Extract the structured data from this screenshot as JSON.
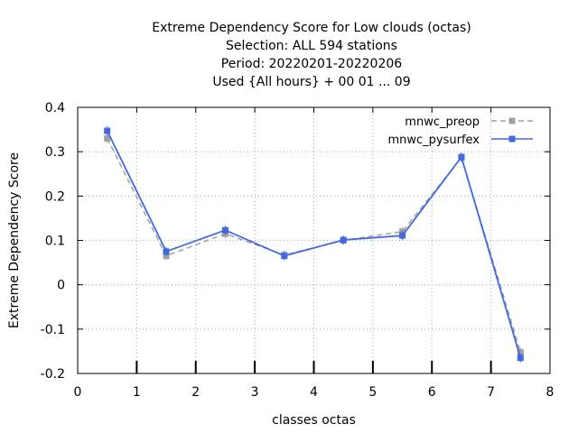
{
  "chart_data": {
    "type": "line",
    "title_lines": [
      "Extreme Dependency Score  for Low clouds (octas)",
      "Selection: ALL    594 stations",
      "Period: 20220201-20220206",
      "Used {All hours} + 00 01 ... 09"
    ],
    "xlabel": "classes octas",
    "ylabel": "Extreme Dependency Score",
    "xlim": [
      0,
      8
    ],
    "ylim": [
      -0.2,
      0.4
    ],
    "x_ticks": [
      "0",
      "1",
      "2",
      "3",
      "4",
      "5",
      "6",
      "7",
      "8"
    ],
    "y_ticks": [
      "-0.2",
      "-0.1",
      "0",
      "0.1",
      "0.2",
      "0.3",
      "0.4"
    ],
    "x_tick_values": [
      0,
      1,
      2,
      3,
      4,
      5,
      6,
      7,
      8
    ],
    "y_tick_values": [
      -0.2,
      -0.1,
      0,
      0.1,
      0.2,
      0.3,
      0.4
    ],
    "grid": true,
    "legend_position": "top-right",
    "x": [
      0.5,
      1.5,
      2.5,
      3.5,
      4.5,
      5.5,
      6.5,
      7.5
    ],
    "series": [
      {
        "name": "mnwc_preop",
        "values": [
          0.33,
          0.065,
          0.115,
          0.067,
          0.1,
          0.12,
          0.287,
          -0.152
        ],
        "color": "#a0a0a0",
        "dashed": true
      },
      {
        "name": "mnwc_pysurfex",
        "values": [
          0.347,
          0.075,
          0.123,
          0.065,
          0.101,
          0.111,
          0.288,
          -0.165
        ],
        "color": "#4169e1",
        "dashed": false
      }
    ],
    "bottom_marker_x": [
      1,
      2,
      3,
      4,
      5,
      6,
      7
    ]
  }
}
